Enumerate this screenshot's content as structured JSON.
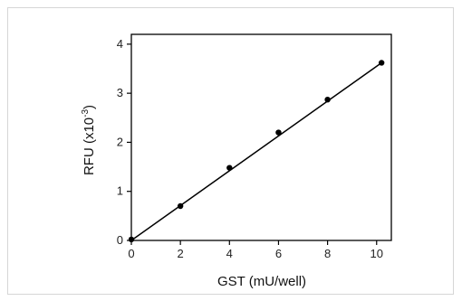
{
  "chart_data": {
    "type": "scatter",
    "xlabel": "GST (mU/well)",
    "ylabel": "RFU (x10",
    "ylabel_exponent": "-3",
    "ylabel_suffix": ")",
    "xlim": [
      0,
      10.6
    ],
    "ylim": [
      0,
      4.2
    ],
    "x_ticks": [
      "0",
      "2",
      "4",
      "6",
      "8",
      "10"
    ],
    "y_ticks": [
      "0",
      "1",
      "2",
      "3",
      "4"
    ],
    "grid": false,
    "series": [
      {
        "x": [
          0,
          2,
          4,
          6,
          8,
          10.2
        ],
        "y": [
          0.02,
          0.7,
          1.48,
          2.2,
          2.87,
          3.62
        ],
        "color": "#000000"
      }
    ],
    "fit_line": {
      "x": [
        0,
        10.2
      ],
      "y": [
        0.0,
        3.62
      ],
      "color": "#000000"
    }
  }
}
